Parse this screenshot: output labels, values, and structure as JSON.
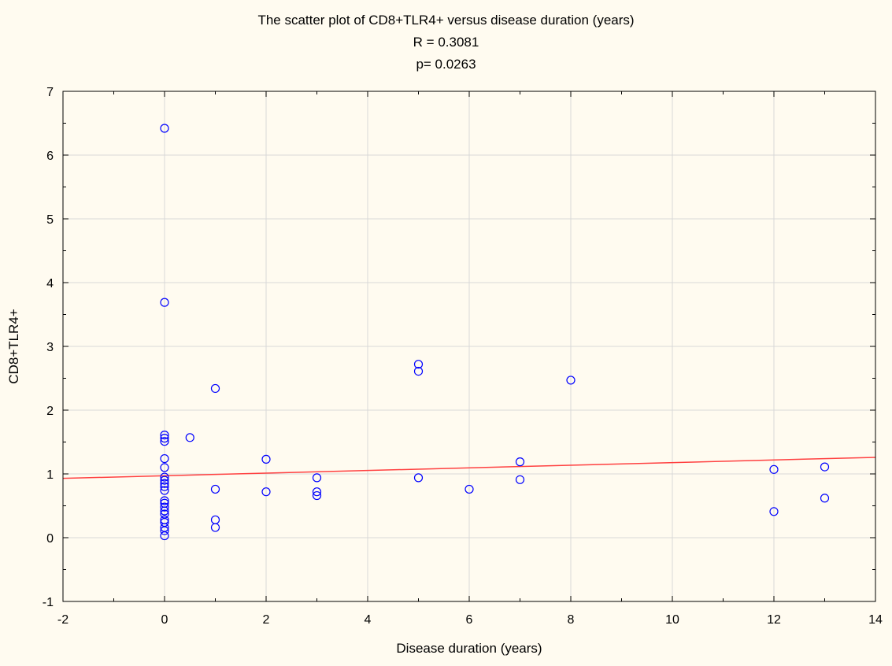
{
  "chart_data": {
    "type": "scatter",
    "title": "The scatter plot of CD8+TLR4+ versus disease duration (years)",
    "subtitle_lines": [
      "R = 0.3081",
      "p= 0.0263"
    ],
    "xlabel": "Disease duration (years)",
    "ylabel": "CD8+TLR4+",
    "xlim": [
      -2,
      14
    ],
    "ylim": [
      -1,
      7
    ],
    "x_ticks": [
      -2,
      0,
      2,
      4,
      6,
      8,
      10,
      12,
      14
    ],
    "y_ticks": [
      -1,
      0,
      1,
      2,
      3,
      4,
      5,
      6,
      7
    ],
    "grid": true,
    "marker_color": "#0000ff",
    "fit_color": "#ff4040",
    "points": [
      {
        "x": 0,
        "y": 6.42
      },
      {
        "x": 0,
        "y": 3.69
      },
      {
        "x": 0,
        "y": 1.61
      },
      {
        "x": 0,
        "y": 1.56
      },
      {
        "x": 0,
        "y": 1.51
      },
      {
        "x": 0,
        "y": 1.24
      },
      {
        "x": 0,
        "y": 1.1
      },
      {
        "x": 0,
        "y": 0.95
      },
      {
        "x": 0,
        "y": 0.9
      },
      {
        "x": 0,
        "y": 0.85
      },
      {
        "x": 0,
        "y": 0.8
      },
      {
        "x": 0,
        "y": 0.74
      },
      {
        "x": 0,
        "y": 0.58
      },
      {
        "x": 0,
        "y": 0.54
      },
      {
        "x": 0,
        "y": 0.48
      },
      {
        "x": 0,
        "y": 0.42
      },
      {
        "x": 0,
        "y": 0.37
      },
      {
        "x": 0,
        "y": 0.28
      },
      {
        "x": 0,
        "y": 0.24
      },
      {
        "x": 0,
        "y": 0.16
      },
      {
        "x": 0,
        "y": 0.11
      },
      {
        "x": 0,
        "y": 0.03
      },
      {
        "x": 0.5,
        "y": 1.57
      },
      {
        "x": 1,
        "y": 2.34
      },
      {
        "x": 1,
        "y": 0.76
      },
      {
        "x": 1,
        "y": 0.28
      },
      {
        "x": 1,
        "y": 0.16
      },
      {
        "x": 2,
        "y": 1.23
      },
      {
        "x": 2,
        "y": 0.72
      },
      {
        "x": 3,
        "y": 0.94
      },
      {
        "x": 3,
        "y": 0.72
      },
      {
        "x": 3,
        "y": 0.66
      },
      {
        "x": 5,
        "y": 2.72
      },
      {
        "x": 5,
        "y": 2.61
      },
      {
        "x": 5,
        "y": 0.94
      },
      {
        "x": 6,
        "y": 0.76
      },
      {
        "x": 7,
        "y": 1.19
      },
      {
        "x": 7,
        "y": 0.91
      },
      {
        "x": 8,
        "y": 2.47
      },
      {
        "x": 12,
        "y": 1.07
      },
      {
        "x": 12,
        "y": 0.41
      },
      {
        "x": 13,
        "y": 1.11
      },
      {
        "x": 13,
        "y": 0.62
      }
    ],
    "fit_line": {
      "x": [
        -2,
        14
      ],
      "y": [
        0.93,
        1.26
      ]
    }
  }
}
